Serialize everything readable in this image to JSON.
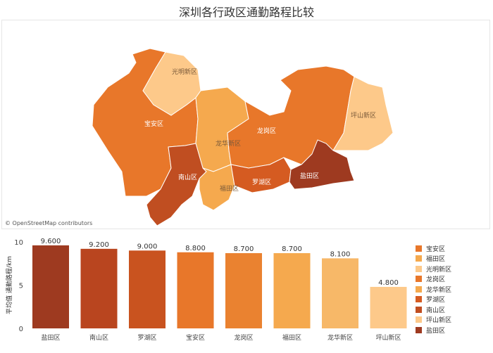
{
  "title": "深圳各行政区通勤路程比较",
  "map": {
    "attribution": "© OpenStreetMap contributors",
    "regions": [
      {
        "name": "光明新区",
        "color": "#fdc98a"
      },
      {
        "name": "宝安区",
        "color": "#e8772a"
      },
      {
        "name": "坪山新区",
        "color": "#fdc98a"
      },
      {
        "name": "龙岗区",
        "color": "#e8772a"
      },
      {
        "name": "龙华新区",
        "color": "#f5a94e"
      },
      {
        "name": "南山区",
        "color": "#c04e21"
      },
      {
        "name": "罗湖区",
        "color": "#d55b21"
      },
      {
        "name": "福田区",
        "color": "#f5a94e"
      },
      {
        "name": "盐田区",
        "color": "#9e3a20"
      }
    ]
  },
  "chart_data": {
    "type": "bar",
    "title": "深圳各行政区通勤路程比较",
    "categories": [
      "盐田区",
      "南山区",
      "罗湖区",
      "宝安区",
      "龙岗区",
      "福田区",
      "龙华新区",
      "坪山新区"
    ],
    "values": [
      9.6,
      9.2,
      9.0,
      8.8,
      8.7,
      8.7,
      8.1,
      4.8
    ],
    "value_labels": [
      "9.600",
      "9.200",
      "9.000",
      "8.800",
      "8.700",
      "8.700",
      "8.100",
      "4.800"
    ],
    "colors": [
      "#9e3a20",
      "#b9451f",
      "#c9531f",
      "#e8772a",
      "#ea8230",
      "#f5a94e",
      "#f7b868",
      "#fdc98a"
    ],
    "ylabel": "平均值 通勤路程/km",
    "xlabel": "",
    "ylim": [
      0,
      10
    ],
    "yticks": [
      0,
      5,
      10
    ],
    "grid": false,
    "legend_position": "right"
  },
  "legend": {
    "items": [
      {
        "label": "宝安区",
        "color": "#e8772a"
      },
      {
        "label": "福田区",
        "color": "#f5a94e"
      },
      {
        "label": "光明新区",
        "color": "#fdc98a"
      },
      {
        "label": "龙岗区",
        "color": "#e8772a"
      },
      {
        "label": "龙华新区",
        "color": "#f5a94e"
      },
      {
        "label": "罗湖区",
        "color": "#d55b21"
      },
      {
        "label": "南山区",
        "color": "#c04e21"
      },
      {
        "label": "坪山新区",
        "color": "#fdc98a"
      },
      {
        "label": "盐田区",
        "color": "#9e3a20"
      }
    ]
  }
}
